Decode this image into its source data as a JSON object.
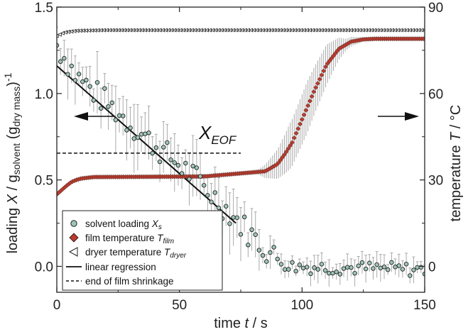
{
  "chart_data": {
    "type": "scatter",
    "x_range": [
      0,
      150
    ],
    "left_ylim": [
      -0.15,
      1.5
    ],
    "right_ylim": [
      -9,
      90
    ],
    "xticks": [
      "0",
      "50",
      "100",
      "150"
    ],
    "left_yticks": [
      "0.0",
      "0.5",
      "1.0",
      "1.5"
    ],
    "right_yticks": [
      "0",
      "30",
      "60",
      "90"
    ],
    "xlabel": {
      "pre": "time ",
      "var": "t",
      "post": " / s"
    },
    "ylabel_left": {
      "pre": "loading ",
      "var": "X",
      "mid1": " / g",
      "sub1": "solvent",
      "mid2": " (g",
      "sub2": "dry mass",
      "post": ")",
      "sup": "-1"
    },
    "ylabel_right": {
      "pre": "temperature ",
      "var": "T",
      "post": " / °C"
    },
    "annotation": {
      "main": "X",
      "sub": "EOF"
    },
    "eof_level": 0.655,
    "eof_x_range": [
      0,
      75
    ],
    "regression": {
      "x": [
        0,
        73
      ],
      "y": [
        1.16,
        0.25
      ]
    },
    "legend": [
      {
        "pre": "solvent loading ",
        "var": "X",
        "sub": "s",
        "marker": "circle"
      },
      {
        "pre": "film temperature ",
        "var": "T",
        "sub": "film",
        "marker": "diamond"
      },
      {
        "pre": "dryer temperature ",
        "var": "T",
        "sub": "dryer",
        "marker": "triangle"
      },
      {
        "pre": "linear regression",
        "var": "",
        "sub": "",
        "marker": "solid-line"
      },
      {
        "pre": "end of film shrinkage",
        "var": "",
        "sub": "",
        "marker": "dashed-line"
      }
    ],
    "legend_position": "bottom-left",
    "series": [
      {
        "name": "solvent loading Xs",
        "axis": "left",
        "curve_points": [
          [
            0,
            1.28
          ],
          [
            8,
            1.1
          ],
          [
            20,
            0.95
          ],
          [
            40,
            0.7
          ],
          [
            55,
            0.53
          ],
          [
            70,
            0.32
          ],
          [
            78,
            0.2
          ],
          [
            88,
            0.06
          ],
          [
            95,
            0.0
          ],
          [
            150,
            -0.02
          ]
        ],
        "sample_step": 1.5,
        "error_bars": [
          [
            0,
            0.1
          ],
          [
            30,
            0.14
          ],
          [
            55,
            0.12
          ],
          [
            75,
            0.12
          ],
          [
            90,
            0.06
          ],
          [
            150,
            0.05
          ]
        ]
      },
      {
        "name": "film temperature Tfilm",
        "axis": "right",
        "curve_points": [
          [
            0,
            25
          ],
          [
            2,
            26.5
          ],
          [
            4,
            28
          ],
          [
            6,
            29.3
          ],
          [
            8,
            30
          ],
          [
            10,
            30.5
          ],
          [
            15,
            31
          ],
          [
            60,
            31.2
          ],
          [
            85,
            33
          ],
          [
            90,
            35.5
          ],
          [
            93,
            39
          ],
          [
            96,
            43
          ],
          [
            100,
            51
          ],
          [
            105,
            61
          ],
          [
            110,
            70
          ],
          [
            115,
            75.5
          ],
          [
            120,
            78
          ],
          [
            125,
            78.8
          ],
          [
            130,
            79
          ],
          [
            150,
            79
          ]
        ],
        "sample_step": 0.8,
        "error_band": [
          [
            0,
            0
          ],
          [
            82,
            0.8
          ],
          [
            88,
            4
          ],
          [
            95,
            8
          ],
          [
            102,
            9
          ],
          [
            110,
            7
          ],
          [
            118,
            2
          ],
          [
            125,
            0.8
          ],
          [
            150,
            0.6
          ]
        ]
      },
      {
        "name": "dryer temperature Tdryer",
        "axis": "right",
        "curve_points": [
          [
            0,
            80
          ],
          [
            3,
            81.2
          ],
          [
            8,
            81.8
          ],
          [
            20,
            82
          ],
          [
            150,
            82
          ]
        ],
        "sample_step": 1.2
      }
    ]
  },
  "colors": {
    "circle_fill": "#9fc5b6",
    "diamond_fill": "#c0392b",
    "error_bar": "#a9a9a9",
    "axis": "#222222"
  }
}
